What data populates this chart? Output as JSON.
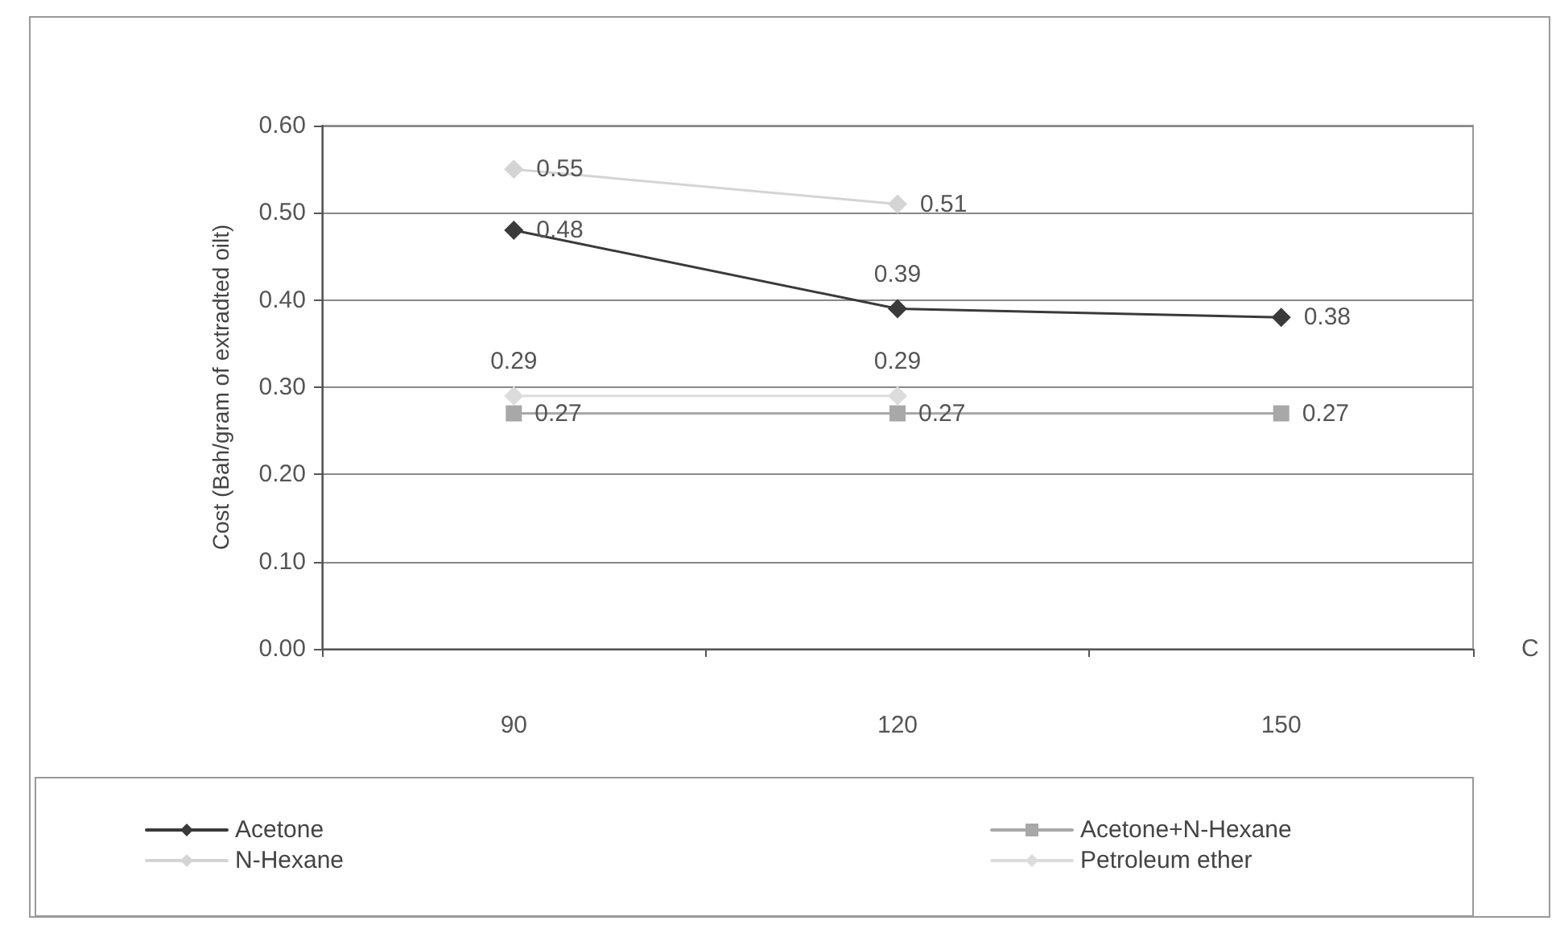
{
  "chart_data": {
    "type": "line",
    "ylabel": "Cost (Bah/gram of extradted oilt)",
    "xlabel": "C",
    "categories": [
      "90",
      "120",
      "150"
    ],
    "series": [
      {
        "name": "Acetone",
        "color": "#3a3a3a",
        "values": [
          0.48,
          0.39,
          0.38
        ]
      },
      {
        "name": "N-Hexane",
        "color": "#d4d4d4",
        "values": [
          0.55,
          0.51,
          null
        ]
      },
      {
        "name": "Acetone+N-Hexane",
        "color": "#a8a8a8",
        "marker": "square",
        "values": [
          0.27,
          0.27,
          0.27
        ]
      },
      {
        "name": "Petroleum ether",
        "color": "#dcdcdc",
        "values": [
          0.29,
          0.29,
          null
        ]
      }
    ],
    "ylim": [
      0,
      0.6
    ],
    "yticks": [
      {
        "value": 0,
        "label": "0.00"
      },
      {
        "value": 0.1,
        "label": "0.10"
      },
      {
        "value": 0.2,
        "label": "0.20"
      },
      {
        "value": 0.3,
        "label": "0.30"
      },
      {
        "value": 0.4,
        "label": "0.40"
      },
      {
        "value": 0.5,
        "label": "0.50"
      },
      {
        "value": 0.6,
        "label": "0.60"
      }
    ],
    "grid": "y",
    "legend": "bottom",
    "data_labels": true,
    "marker": "diamond",
    "line_style": "solid"
  }
}
